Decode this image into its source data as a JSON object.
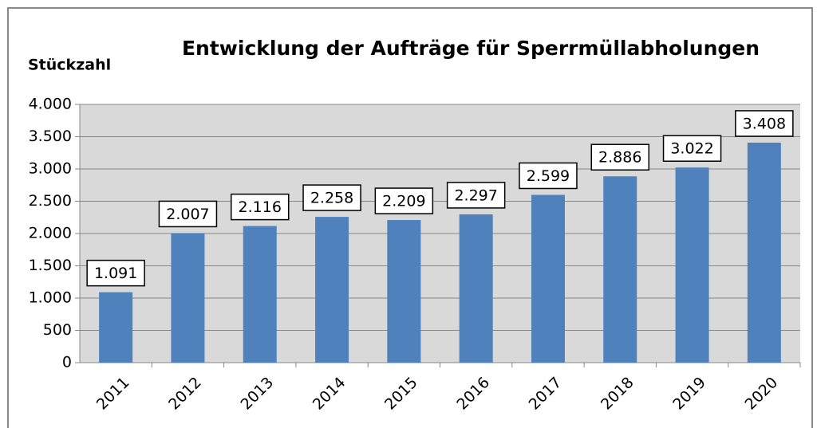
{
  "chart_data": {
    "type": "bar",
    "title": "Entwicklung der Aufträge für Sperrmüllabholungen",
    "y_label": "Stückzahl",
    "categories": [
      "2011",
      "2012",
      "2013",
      "2014",
      "2015",
      "2016",
      "2017",
      "2018",
      "2019",
      "2020"
    ],
    "values": [
      1091,
      2007,
      2116,
      2258,
      2209,
      2297,
      2599,
      2886,
      3022,
      3408
    ],
    "value_labels": [
      "1.091",
      "2.007",
      "2.116",
      "2.258",
      "2.209",
      "2.297",
      "2.599",
      "2.886",
      "3.022",
      "3.408"
    ],
    "color": "#4f81bd",
    "ylim": [
      0,
      4000
    ],
    "yticks": [
      0,
      500,
      {
        "value": 1000,
        "label": "1.000"
      },
      {
        "value": 1500,
        "label": "1.500"
      },
      {
        "value": 2000,
        "label": "2.000"
      },
      {
        "value": 2500,
        "label": "2.500"
      },
      {
        "value": 3000,
        "label": "3.000"
      },
      {
        "value": 3500,
        "label": "3.500"
      },
      {
        "value": 4000,
        "label": "4.000"
      }
    ],
    "grid": true
  }
}
